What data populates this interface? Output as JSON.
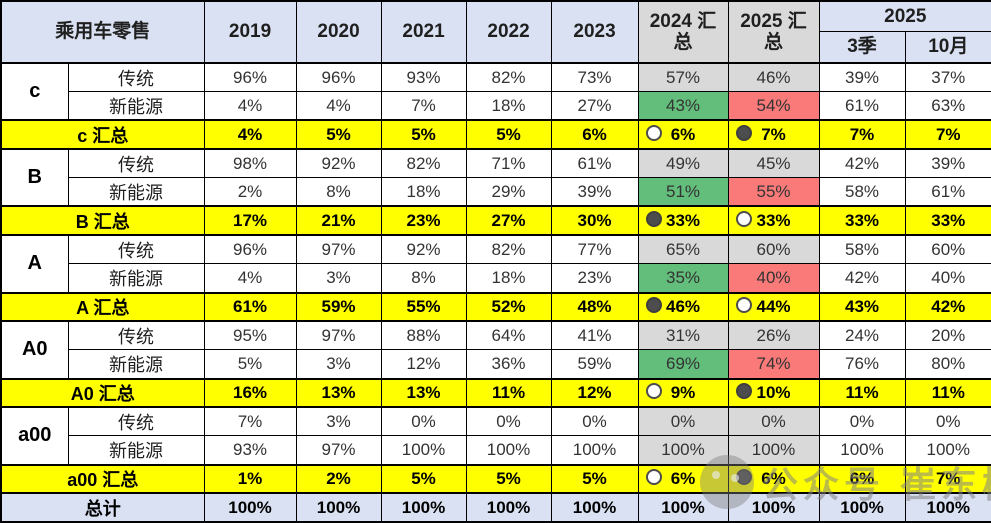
{
  "colors": {
    "header_bg": "#D9E1F2",
    "summary_col_bg": "#D9D9D9",
    "yellow": "#FFFF00",
    "green": "#63BE7B",
    "red": "#FA7A7A",
    "gray": "#D9D9D9",
    "total_bg": "#D9E1F2",
    "border": "#000000"
  },
  "watermark": {
    "text": "公众号 崔东树"
  },
  "chart_data": {
    "type": "table",
    "title": "乘用车零售",
    "year_columns": [
      "2019",
      "2020",
      "2021",
      "2022",
      "2023"
    ],
    "summary_columns": [
      "2024 汇总",
      "2025 汇总"
    ],
    "group_2025": {
      "label": "2025",
      "sub_columns": [
        "3季",
        "10月"
      ]
    },
    "segments": [
      {
        "label": "c",
        "traditional_label": "传统",
        "traditional": [
          "96%",
          "96%",
          "93%",
          "82%",
          "73%",
          "57%",
          "46%",
          "39%",
          "37%"
        ],
        "traditional_bg": [
          "",
          "",
          "",
          "",
          "",
          "gray",
          "gray",
          "",
          ""
        ],
        "nev_label": "新能源",
        "nev": [
          "4%",
          "4%",
          "7%",
          "18%",
          "27%",
          "43%",
          "54%",
          "61%",
          "63%"
        ],
        "nev_bg": [
          "",
          "",
          "",
          "",
          "",
          "green",
          "red",
          "",
          ""
        ],
        "summary_label": "c 汇总",
        "summary": [
          "4%",
          "5%",
          "5%",
          "5%",
          "6%",
          "6%",
          "7%",
          "7%",
          "7%"
        ],
        "summary_icons": {
          "col_2024": "circle-white",
          "col_2025": "circle-dark"
        }
      },
      {
        "label": "B",
        "traditional_label": "传统",
        "traditional": [
          "98%",
          "92%",
          "82%",
          "71%",
          "61%",
          "49%",
          "45%",
          "42%",
          "39%"
        ],
        "traditional_bg": [
          "",
          "",
          "",
          "",
          "",
          "gray",
          "gray",
          "",
          ""
        ],
        "nev_label": "新能源",
        "nev": [
          "2%",
          "8%",
          "18%",
          "29%",
          "39%",
          "51%",
          "55%",
          "58%",
          "61%"
        ],
        "nev_bg": [
          "",
          "",
          "",
          "",
          "",
          "green",
          "red",
          "",
          ""
        ],
        "summary_label": "B 汇总",
        "summary": [
          "17%",
          "21%",
          "23%",
          "27%",
          "30%",
          "33%",
          "33%",
          "33%",
          "33%"
        ],
        "summary_icons": {
          "col_2024": "circle-dark",
          "col_2025": "circle-white"
        }
      },
      {
        "label": "A",
        "traditional_label": "传统",
        "traditional": [
          "96%",
          "97%",
          "92%",
          "82%",
          "77%",
          "65%",
          "60%",
          "58%",
          "60%"
        ],
        "traditional_bg": [
          "",
          "",
          "",
          "",
          "",
          "gray",
          "gray",
          "",
          ""
        ],
        "nev_label": "新能源",
        "nev": [
          "4%",
          "3%",
          "8%",
          "18%",
          "23%",
          "35%",
          "40%",
          "42%",
          "40%"
        ],
        "nev_bg": [
          "",
          "",
          "",
          "",
          "",
          "green",
          "red",
          "",
          ""
        ],
        "summary_label": "A 汇总",
        "summary": [
          "61%",
          "59%",
          "55%",
          "52%",
          "48%",
          "46%",
          "44%",
          "43%",
          "42%"
        ],
        "summary_icons": {
          "col_2024": "circle-dark",
          "col_2025": "circle-white"
        }
      },
      {
        "label": "A0",
        "traditional_label": "传统",
        "traditional": [
          "95%",
          "97%",
          "88%",
          "64%",
          "41%",
          "31%",
          "26%",
          "24%",
          "20%"
        ],
        "traditional_bg": [
          "",
          "",
          "",
          "",
          "",
          "gray",
          "gray",
          "",
          ""
        ],
        "nev_label": "新能源",
        "nev": [
          "5%",
          "3%",
          "12%",
          "36%",
          "59%",
          "69%",
          "74%",
          "76%",
          "80%"
        ],
        "nev_bg": [
          "",
          "",
          "",
          "",
          "",
          "green",
          "red",
          "",
          ""
        ],
        "summary_label": "A0 汇总",
        "summary": [
          "16%",
          "13%",
          "13%",
          "11%",
          "12%",
          "9%",
          "10%",
          "11%",
          "11%"
        ],
        "summary_icons": {
          "col_2024": "circle-white",
          "col_2025": "circle-dark"
        }
      },
      {
        "label": "a00",
        "traditional_label": "传统",
        "traditional": [
          "7%",
          "3%",
          "0%",
          "0%",
          "0%",
          "0%",
          "0%",
          "0%",
          "0%"
        ],
        "traditional_bg": [
          "",
          "",
          "",
          "",
          "",
          "gray",
          "gray",
          "",
          ""
        ],
        "nev_label": "新能源",
        "nev": [
          "93%",
          "97%",
          "100%",
          "100%",
          "100%",
          "100%",
          "100%",
          "100%",
          "100%"
        ],
        "nev_bg": [
          "",
          "",
          "",
          "",
          "",
          "gray",
          "gray",
          "",
          ""
        ],
        "summary_label": "a00 汇总",
        "summary": [
          "1%",
          "2%",
          "5%",
          "5%",
          "5%",
          "6%",
          "6%",
          "6%",
          "7%"
        ],
        "summary_icons": {
          "col_2024": "circle-white",
          "col_2025": "circle-dark"
        }
      }
    ],
    "total": {
      "label": "总计",
      "values": [
        "100%",
        "100%",
        "100%",
        "100%",
        "100%",
        "100%",
        "100%",
        "100%",
        "100%"
      ]
    }
  }
}
